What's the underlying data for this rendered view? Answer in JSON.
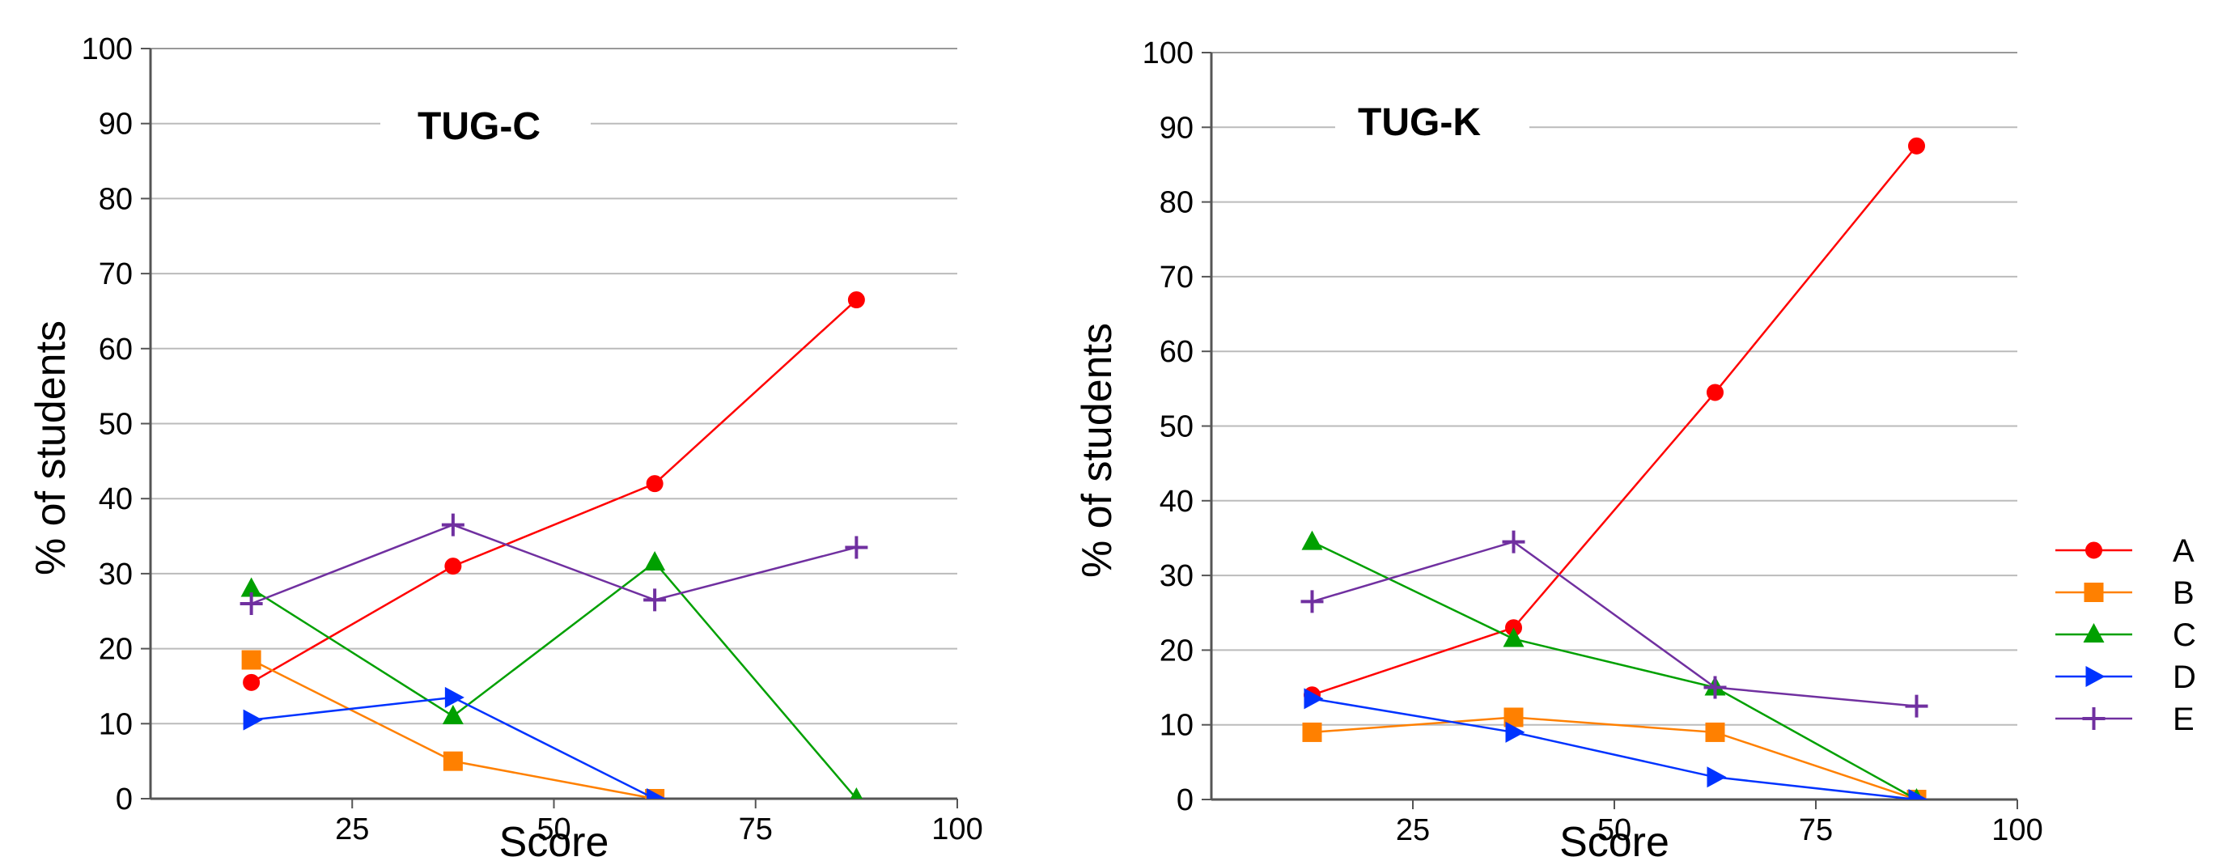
{
  "chart_data": [
    {
      "type": "line",
      "title": "TUG-C",
      "xlabel": "Score",
      "ylabel": "% of students",
      "xlim": [
        0,
        100
      ],
      "ylim": [
        0,
        100
      ],
      "xticks": [
        25,
        50,
        75,
        100
      ],
      "yticks": [
        0,
        10,
        20,
        30,
        40,
        50,
        60,
        70,
        80,
        90,
        100
      ],
      "grid": "horizontal",
      "legend": "none",
      "x": [
        12.5,
        37.5,
        62.5,
        87.5
      ],
      "series": [
        {
          "name": "A",
          "values": [
            15.5,
            31,
            42,
            66.5
          ],
          "color": "#ff0000",
          "marker": "circle"
        },
        {
          "name": "B",
          "values": [
            18.5,
            5,
            0,
            null
          ],
          "color": "#ff8000",
          "marker": "square"
        },
        {
          "name": "C",
          "values": [
            28,
            11,
            31.5,
            0
          ],
          "color": "#00a000",
          "marker": "triangle-up"
        },
        {
          "name": "D",
          "values": [
            10.5,
            13.5,
            0,
            null
          ],
          "color": "#0033ff",
          "marker": "triangle-right"
        },
        {
          "name": "E",
          "values": [
            26,
            36.5,
            26.5,
            33.5
          ],
          "color": "#7030a0",
          "marker": "plus"
        }
      ]
    },
    {
      "type": "line",
      "title": "TUG-K",
      "xlabel": "Score",
      "ylabel": "% of students",
      "xlim": [
        0,
        100
      ],
      "ylim": [
        0,
        100
      ],
      "xticks": [
        25,
        50,
        75,
        100
      ],
      "yticks": [
        0,
        10,
        20,
        30,
        40,
        50,
        60,
        70,
        80,
        90,
        100
      ],
      "grid": "horizontal",
      "legend": "right",
      "x": [
        12.5,
        37.5,
        62.5,
        87.5
      ],
      "series": [
        {
          "name": "A",
          "values": [
            14,
            23,
            54.5,
            87.5
          ],
          "color": "#ff0000",
          "marker": "circle"
        },
        {
          "name": "B",
          "values": [
            9,
            11,
            9,
            0
          ],
          "color": "#ff8000",
          "marker": "square"
        },
        {
          "name": "C",
          "values": [
            34.5,
            21.5,
            15,
            0
          ],
          "color": "#00a000",
          "marker": "triangle-up"
        },
        {
          "name": "D",
          "values": [
            13.5,
            9,
            3,
            0
          ],
          "color": "#0033ff",
          "marker": "triangle-right"
        },
        {
          "name": "E",
          "values": [
            26.5,
            34.5,
            15,
            12.5
          ],
          "color": "#7030a0",
          "marker": "plus"
        }
      ]
    }
  ]
}
